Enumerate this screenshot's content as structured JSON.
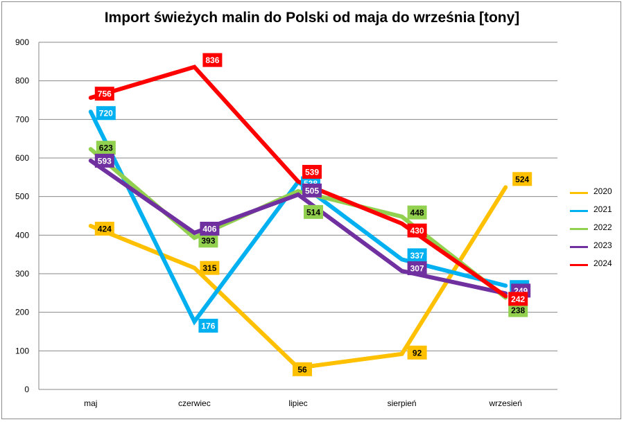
{
  "chart_data": {
    "type": "line",
    "title": "Import świeżych malin do Polski od maja do września [tony]",
    "categories": [
      "maj",
      "czerwiec",
      "lipiec",
      "sierpień",
      "wrzesień"
    ],
    "ylim": [
      0,
      900
    ],
    "yticks": [
      "0",
      "100",
      "200",
      "300",
      "400",
      "500",
      "600",
      "700",
      "800",
      "900"
    ],
    "grid": true,
    "legend_position": "right",
    "series": [
      {
        "name": "2020",
        "color": "#FFC000",
        "values": [
          424,
          315,
          56,
          92,
          524
        ]
      },
      {
        "name": "2021",
        "color": "#00B0F0",
        "values": [
          720,
          176,
          538,
          337,
          269
        ]
      },
      {
        "name": "2022",
        "color": "#92D050",
        "values": [
          623,
          393,
          514,
          448,
          238
        ]
      },
      {
        "name": "2023",
        "color": "#7030A0",
        "values": [
          593,
          406,
          505,
          307,
          249
        ]
      },
      {
        "name": "2024",
        "color": "#FF0000",
        "values": [
          756,
          836,
          539,
          430,
          242
        ]
      }
    ]
  }
}
